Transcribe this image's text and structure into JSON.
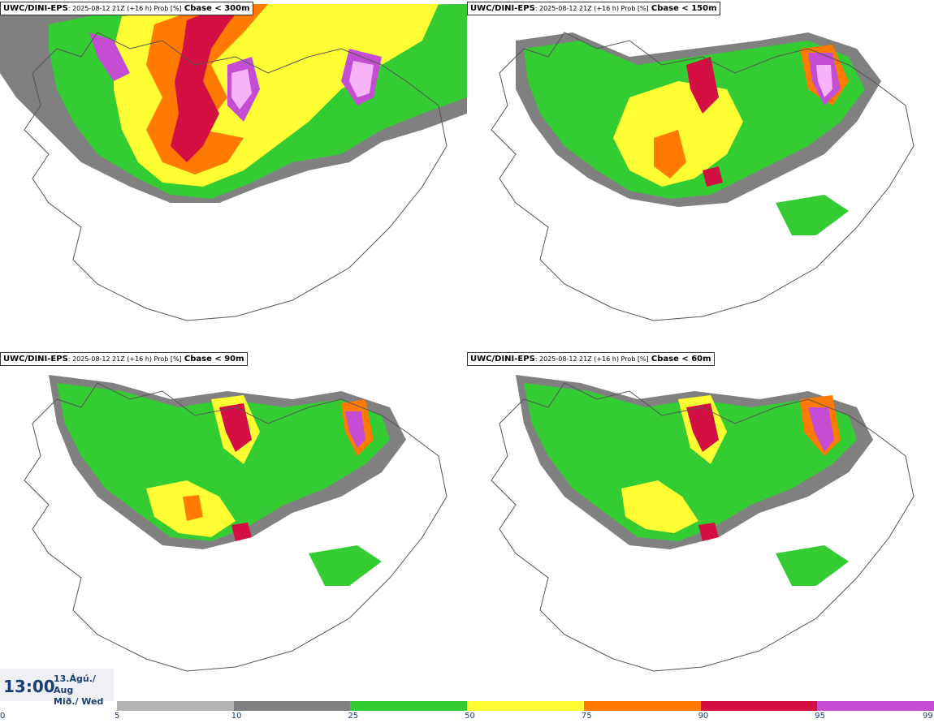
{
  "panels": [
    {
      "model": "UWC/DINI-EPS",
      "meta": ": 2025-08-12 21Z (+16 h) Prob [%]",
      "variable": "Cbase < 300m"
    },
    {
      "model": "UWC/DINI-EPS",
      "meta": ": 2025-08-12 21Z (+16 h) Prob [%]",
      "variable": "Cbase < 150m"
    },
    {
      "model": "UWC/DINI-EPS",
      "meta": ": 2025-08-12 21Z (+16 h) Prob [%]",
      "variable": "Cbase < 90m"
    },
    {
      "model": "UWC/DINI-EPS",
      "meta": ": 2025-08-12 21Z (+16 h) Prob [%]",
      "variable": "Cbase < 60m"
    }
  ],
  "time": {
    "clock": "13:00",
    "date_line1": "13.Ágú./ Aug",
    "date_line2": "Mið./ Wed"
  },
  "legend": {
    "ticks": [
      "0",
      "5",
      "10",
      "25",
      "50",
      "75",
      "90",
      "95",
      "99"
    ],
    "colors": [
      "#ffffff",
      "#b3b3b3",
      "#808080",
      "#33cc33",
      "#ffff33",
      "#ff7a00",
      "#d40f44",
      "#c44dd4",
      "#f6b3f6"
    ]
  }
}
